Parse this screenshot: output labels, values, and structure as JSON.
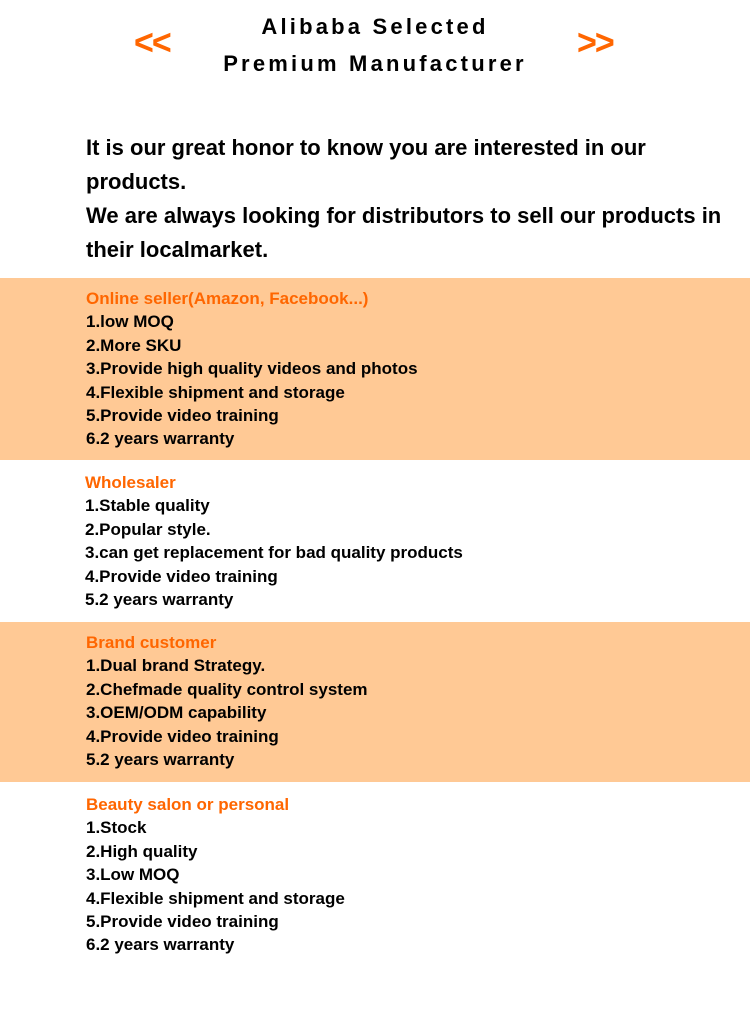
{
  "header": {
    "line1": "Alibaba Selected",
    "line2": "Premium Manufacturer",
    "left_icon": "double-chevron-left-icon",
    "right_icon": "double-chevron-right-icon",
    "left_glyph": "<<",
    "right_glyph": ">>",
    "accent_color": "#ff6600"
  },
  "intro": {
    "p1": "It is our great honor to know you are interested in our products.",
    "p2": "We are always looking for distributors to sell our products in their localmarket."
  },
  "band_color": "#ffc995",
  "sections": [
    {
      "title": "Online seller(Amazon, Facebook...)",
      "items": [
        "1.low MOQ",
        "2.More SKU",
        "3.Provide high quality videos and photos",
        "4.Flexible shipment and storage",
        "5.Provide video training",
        "6.2 years warranty"
      ]
    },
    {
      "title": "Wholesaler",
      "items": [
        "1.Stable quality",
        "2.Popular style.",
        "3.can get replacement for bad quality products",
        "4.Provide video training",
        "5.2 years warranty"
      ]
    },
    {
      "title": "Brand customer",
      "items": [
        "1.Dual brand Strategy.",
        "2.Chefmade quality control system",
        "3.OEM/ODM capability",
        "4.Provide video training",
        "5.2 years warranty"
      ]
    },
    {
      "title": "Beauty salon or personal",
      "items": [
        "1.Stock",
        "2.High quality",
        "3.Low MOQ",
        "4.Flexible shipment and storage",
        "5.Provide video training",
        "6.2 years warranty"
      ]
    }
  ]
}
